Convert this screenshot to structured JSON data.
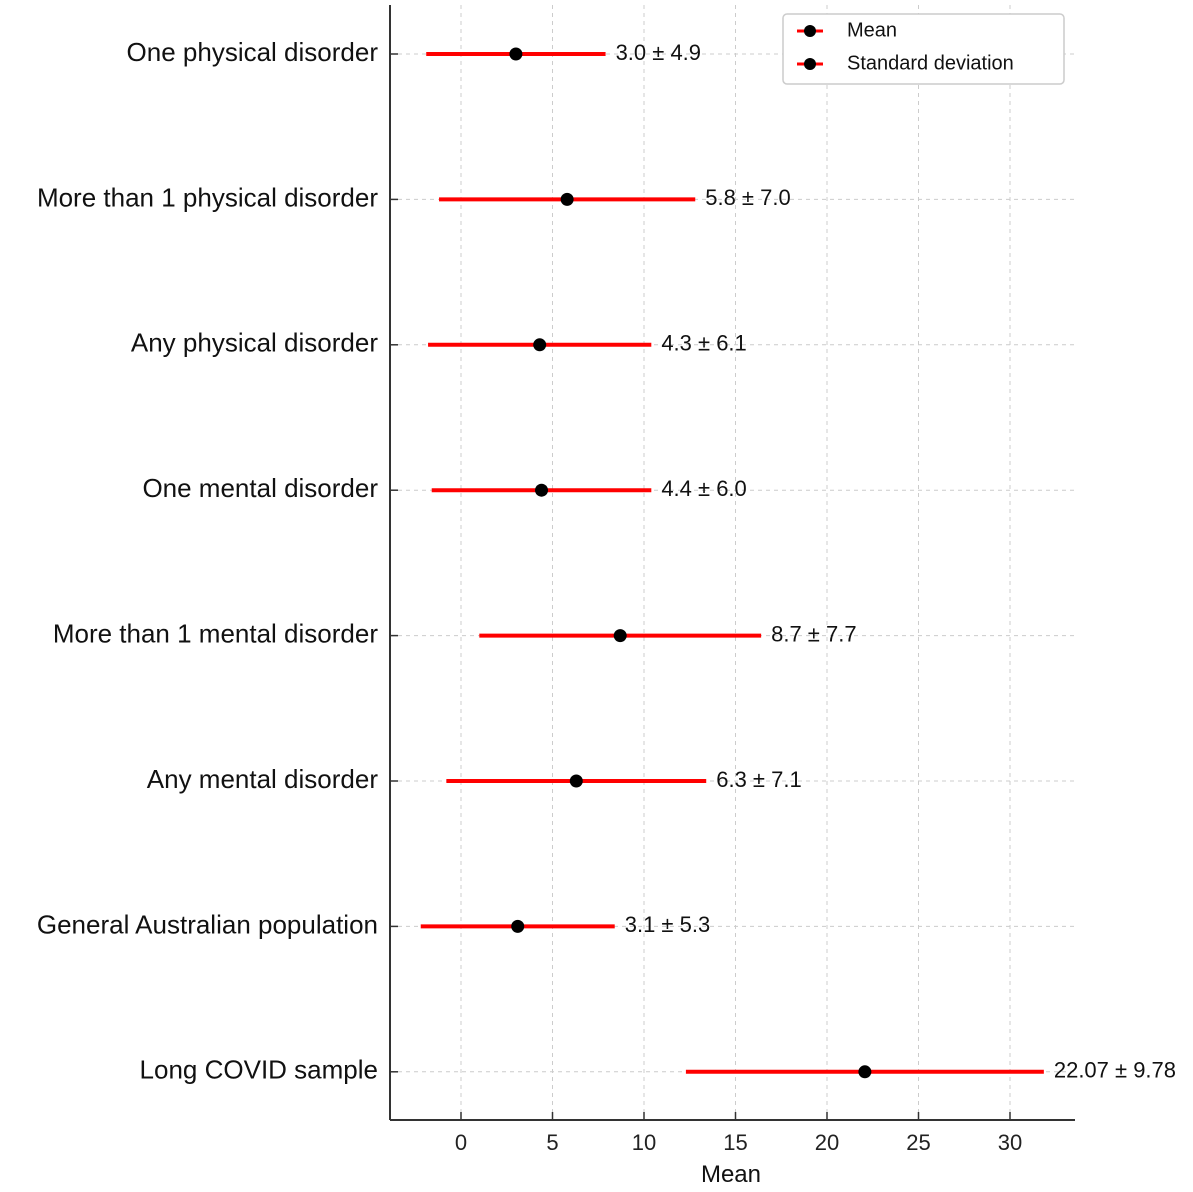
{
  "chart_data": {
    "type": "errorbar",
    "title": "",
    "xlabel": "Mean",
    "ylabel": "",
    "xlim": [
      -3.9,
      33.5
    ],
    "xticks": [
      0,
      5,
      10,
      15,
      20,
      25,
      30
    ],
    "grid": true,
    "legend_position": "top-right",
    "legend": [
      {
        "label": "Mean",
        "marker": "dot"
      },
      {
        "label": "Standard deviation",
        "marker": "line"
      }
    ],
    "categories": [
      "One physical disorder",
      "More than 1 physical disorder",
      "Any physical disorder",
      "One mental disorder",
      "More than 1 mental disorder",
      "Any mental disorder",
      "General Australian population",
      "Long COVID sample"
    ],
    "means": [
      3.0,
      5.8,
      4.3,
      4.4,
      8.7,
      6.3,
      3.1,
      22.07
    ],
    "sds": [
      4.9,
      7.0,
      6.1,
      6.0,
      7.7,
      7.1,
      5.3,
      9.78
    ],
    "annotations": [
      "3.0 ± 4.9",
      "5.8 ± 7.0",
      "4.3 ± 6.1",
      "4.4 ± 6.0",
      "8.7 ± 7.7",
      "6.3 ± 7.1",
      "3.1 ± 5.3",
      "22.07 ± 9.78"
    ],
    "colors": {
      "sd_line": "#ff0000",
      "mean_dot": "#000000",
      "grid": "#cccccc",
      "axis": "#333333"
    }
  }
}
